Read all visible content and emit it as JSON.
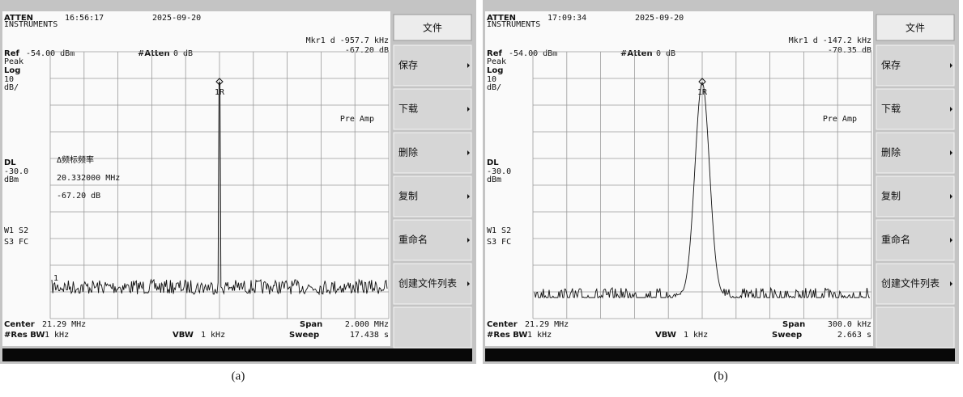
{
  "panels": [
    {
      "brand": "ATTEN",
      "brand_sub": "INSTRUMENTS",
      "time": "16:56:17",
      "date": "2025-09-20",
      "marker_delta": "Mkr1 d -957.7 kHz",
      "marker_value": "-67.20 dB",
      "ref_label": "Ref",
      "ref_value": "-54.00 dBm",
      "atten_label": "#Atten",
      "atten_value": "0 dB",
      "detector": "Peak",
      "scale_type": "Log",
      "scale_value": "10",
      "scale_unit": "dB/",
      "dl_label": "DL",
      "dl_value": "-30.0",
      "dl_unit": "dBm",
      "trace_mode_1": "W1 S2",
      "trace_mode_2": "S3 FC",
      "preamp": "Pre Amp",
      "marker_label": "1R",
      "ref_marker": "1",
      "center_label": "Center",
      "center_value": "21.29 MHz",
      "span_label": "Span",
      "span_value": "2.000 MHz",
      "rbw_label": "#Res BW",
      "rbw_value": "1 kHz",
      "vbw_label": "VBW",
      "vbw_value": "1 kHz",
      "sweep_label": "Sweep",
      "sweep_value": "17.438 s",
      "menu_title": "文件",
      "menu_items": [
        "保存",
        "下载",
        "删除",
        "复制",
        "重命名",
        "创建文件列表"
      ],
      "overlay": [
        "Δ频标频率",
        "20.332000 MHz",
        "-67.20 dB"
      ],
      "caption": "(a)"
    },
    {
      "brand": "ATTEN",
      "brand_sub": "INSTRUMENTS",
      "time": "17:09:34",
      "date": "2025-09-20",
      "marker_delta": "Mkr1 d -147.2 kHz",
      "marker_value": "-70.35 dB",
      "ref_label": "Ref",
      "ref_value": "-54.00 dBm",
      "atten_label": "#Atten",
      "atten_value": "0 dB",
      "detector": "Peak",
      "scale_type": "Log",
      "scale_value": "10",
      "scale_unit": "dB/",
      "dl_label": "DL",
      "dl_value": "-30.0",
      "dl_unit": "dBm",
      "trace_mode_1": "W1 S2",
      "trace_mode_2": "S3 FC",
      "preamp": "Pre Amp",
      "marker_label": "1R",
      "center_label": "Center",
      "center_value": "21.29 MHz",
      "span_label": "Span",
      "span_value": "300.0 kHz",
      "rbw_label": "#Res BW",
      "rbw_value": "1 kHz",
      "vbw_label": "VBW",
      "vbw_value": "1 kHz",
      "sweep_label": "Sweep",
      "sweep_value": "2.663 s",
      "menu_title": "文件",
      "menu_items": [
        "保存",
        "下载",
        "删除",
        "复制",
        "重命名",
        "创建文件列表"
      ],
      "caption": "(b)"
    }
  ]
}
